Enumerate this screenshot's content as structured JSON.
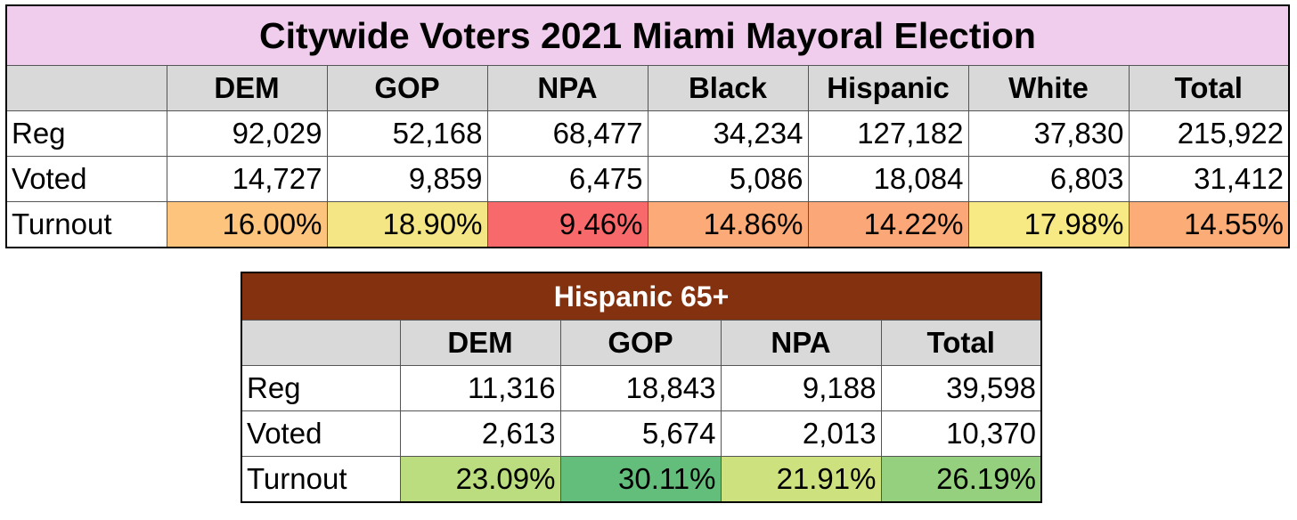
{
  "table1": {
    "title": "Citywide Voters 2021 Miami Mayoral Election",
    "headers": [
      "DEM",
      "GOP",
      "NPA",
      "Black",
      "Hispanic",
      "White",
      "Total"
    ],
    "rows": [
      {
        "label": "Reg",
        "values": [
          "92,029",
          "52,168",
          "68,477",
          "34,234",
          "127,182",
          "37,830",
          "215,922"
        ]
      },
      {
        "label": "Voted",
        "values": [
          "14,727",
          "9,859",
          "6,475",
          "5,086",
          "18,084",
          "6,803",
          "31,412"
        ]
      },
      {
        "label": "Turnout",
        "values": [
          "16.00%",
          "18.90%",
          "9.46%",
          "14.86%",
          "14.22%",
          "17.98%",
          "14.55%"
        ]
      }
    ],
    "colors": {
      "title_bg": "#f0cced",
      "header_bg": "#d9d9d9"
    },
    "turnout_colors": [
      "#fdc47d",
      "#f4e684",
      "#f8696b",
      "#fcaa77",
      "#fba777",
      "#f7e983",
      "#fbac77"
    ]
  },
  "table2": {
    "title": "Hispanic 65+",
    "headers": [
      "DEM",
      "GOP",
      "NPA",
      "Total"
    ],
    "rows": [
      {
        "label": "Reg",
        "values": [
          "11,316",
          "18,843",
          "9,188",
          "39,598"
        ]
      },
      {
        "label": "Voted",
        "values": [
          "2,613",
          "5,674",
          "2,013",
          "10,370"
        ]
      },
      {
        "label": "Turnout",
        "values": [
          "23.09%",
          "30.11%",
          "21.91%",
          "26.19%"
        ]
      }
    ],
    "colors": {
      "title_bg": "#843110",
      "title_fg": "#ffffff",
      "header_bg": "#d9d9d9"
    },
    "turnout_colors": [
      "#bcdd7f",
      "#63be7b",
      "#cee17f",
      "#94d07d"
    ]
  }
}
